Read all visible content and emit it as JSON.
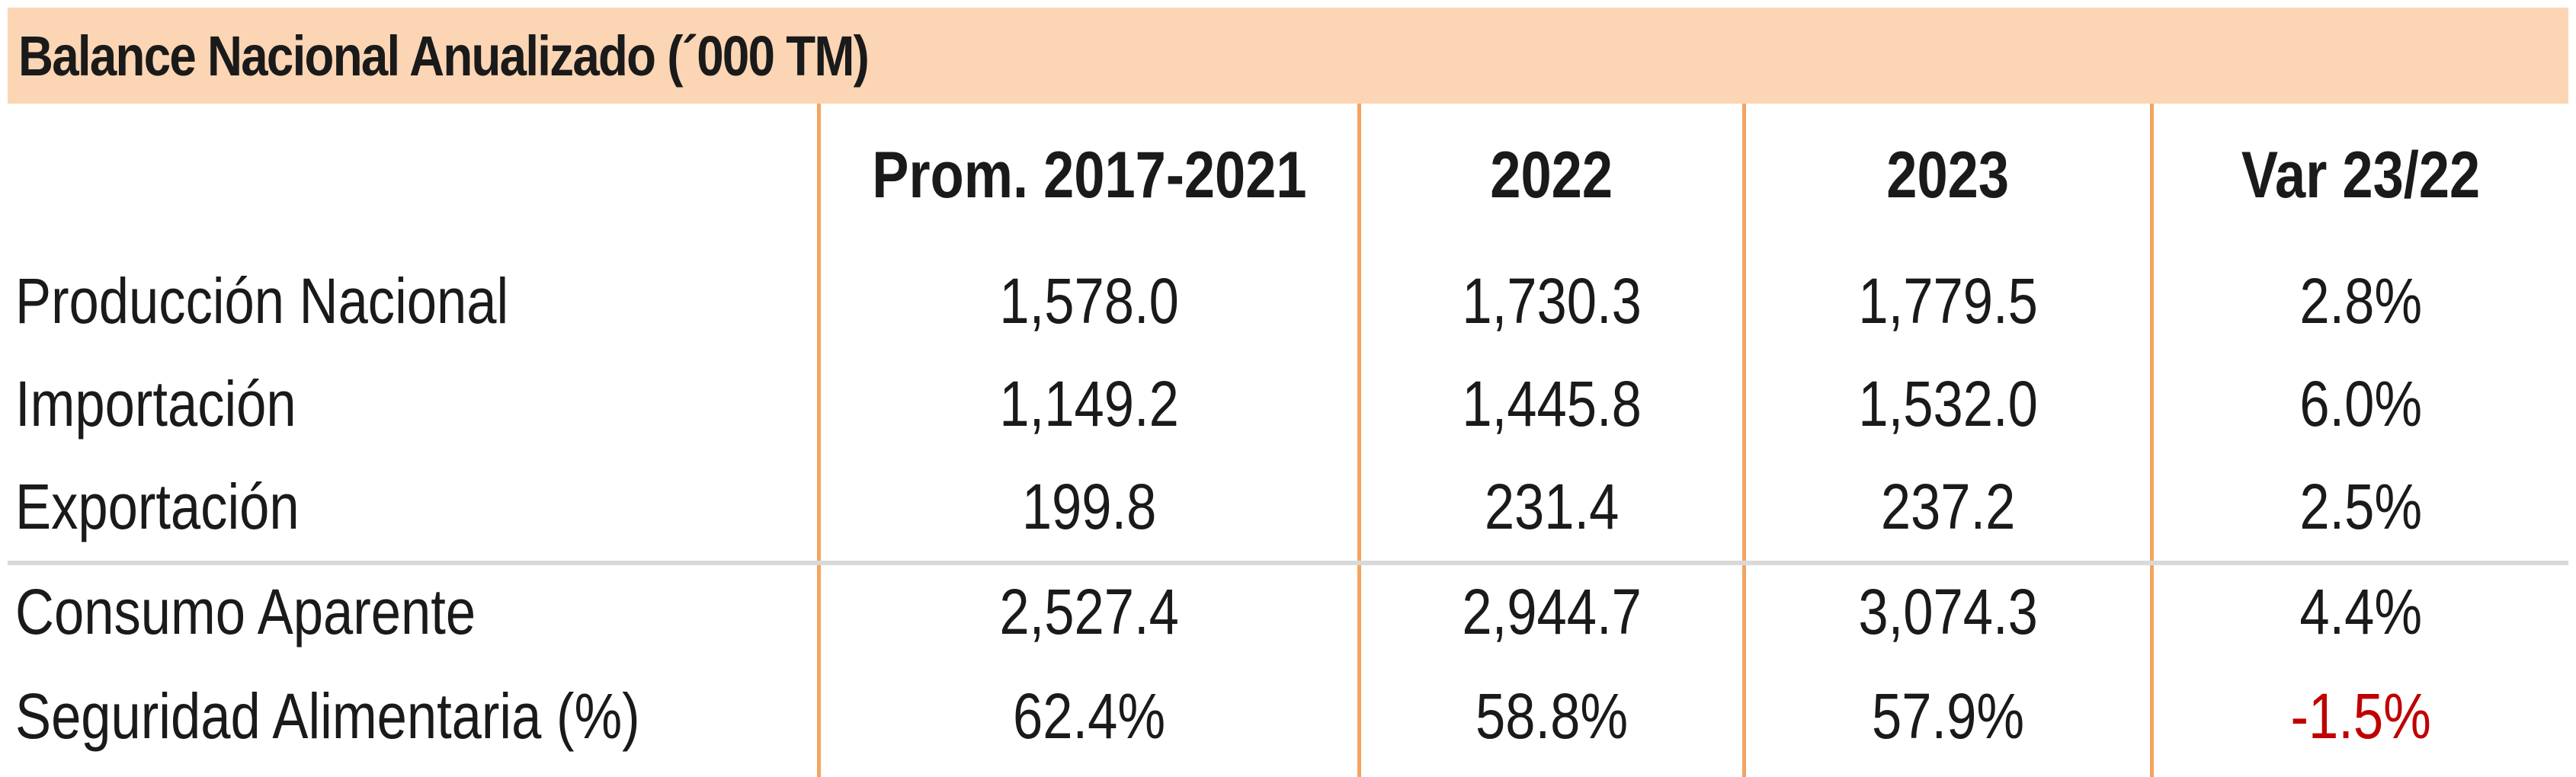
{
  "title": "Balance Nacional Anualizado (´000 TM)",
  "columns": [
    "Prom. 2017-2021",
    "2022",
    "2023",
    "Var 23/22"
  ],
  "rows": [
    {
      "label": "Producción Nacional",
      "values": [
        "1,578.0",
        "1,730.3",
        "1,779.5",
        "2.8%"
      ]
    },
    {
      "label": "Importación",
      "values": [
        "1,149.2",
        "1,445.8",
        "1,532.0",
        "6.0%"
      ]
    },
    {
      "label": "Exportación",
      "values": [
        "199.8",
        "231.4",
        "237.2",
        "2.5%"
      ]
    },
    {
      "label": "Consumo Aparente",
      "values": [
        "2,527.4",
        "2,944.7",
        "3,074.3",
        "4.4%"
      ]
    },
    {
      "label": "Seguridad Alimentaria (%)",
      "values": [
        "62.4%",
        "58.8%",
        "57.9%",
        "-1.5%"
      ]
    }
  ],
  "colors": {
    "header_fill": "#fcd5b4",
    "column_rule": "#f4a460",
    "row_separator": "#d9d9d9",
    "negative_value": "#c00000"
  }
}
